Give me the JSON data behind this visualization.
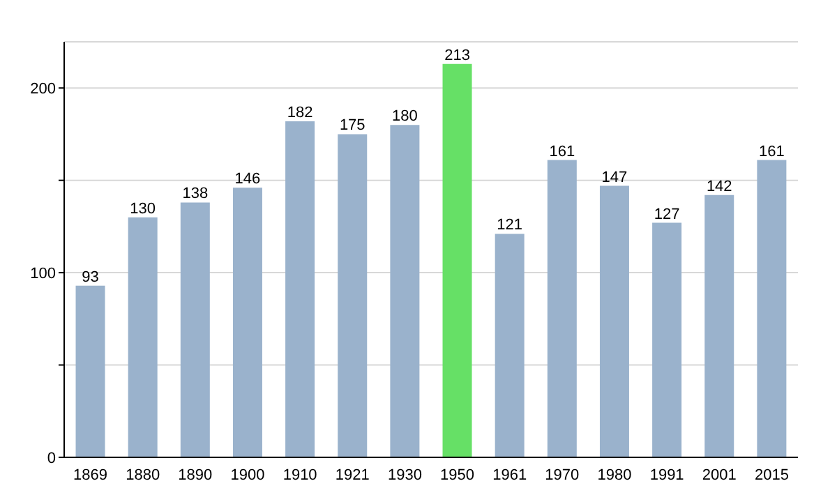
{
  "chart_data": {
    "type": "bar",
    "categories": [
      "1869",
      "1880",
      "1890",
      "1900",
      "1910",
      "1921",
      "1930",
      "1950",
      "1961",
      "1970",
      "1980",
      "1991",
      "2001",
      "2015"
    ],
    "values": [
      93,
      130,
      138,
      146,
      182,
      175,
      180,
      213,
      121,
      161,
      147,
      127,
      142,
      161
    ],
    "colors": [
      "#9ab2cc",
      "#9ab2cc",
      "#9ab2cc",
      "#9ab2cc",
      "#9ab2cc",
      "#9ab2cc",
      "#9ab2cc",
      "#66e066",
      "#9ab2cc",
      "#9ab2cc",
      "#9ab2cc",
      "#9ab2cc",
      "#9ab2cc",
      "#9ab2cc"
    ],
    "ylim": [
      0,
      225
    ],
    "yticks": [
      0,
      {
        "value": 50,
        "label": null
      },
      100,
      {
        "value": 150,
        "label": null
      },
      200
    ],
    "grid": "y",
    "data_labels": true
  }
}
